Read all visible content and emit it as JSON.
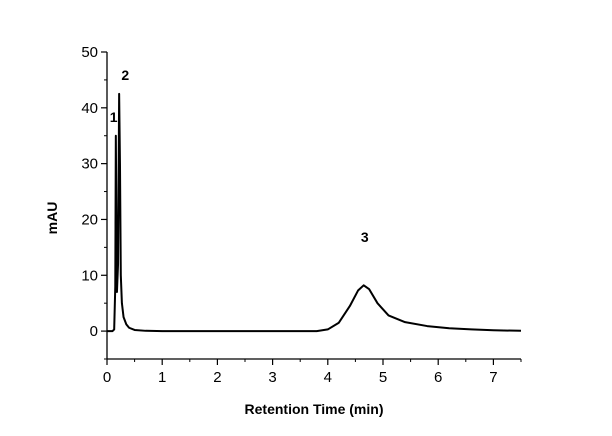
{
  "chart_data": {
    "type": "line",
    "title": "",
    "xlabel": "Retention Time (min)",
    "ylabel": "mAU",
    "xlim": [
      0,
      7.5
    ],
    "ylim": [
      -5,
      50
    ],
    "x_ticks": [
      "0",
      "1",
      "2",
      "3",
      "4",
      "5",
      "6",
      "7"
    ],
    "y_ticks": [
      "0",
      "10",
      "20",
      "30",
      "40",
      "50"
    ],
    "grid": false,
    "series": [
      {
        "name": "",
        "color": "#000000",
        "points": [
          [
            0.0,
            0.0
          ],
          [
            0.1,
            0.0
          ],
          [
            0.13,
            0.3
          ],
          [
            0.15,
            8.0
          ],
          [
            0.16,
            35.0
          ],
          [
            0.17,
            20.0
          ],
          [
            0.18,
            7.0
          ],
          [
            0.2,
            12.0
          ],
          [
            0.22,
            42.5
          ],
          [
            0.235,
            30.0
          ],
          [
            0.25,
            10.0
          ],
          [
            0.27,
            5.0
          ],
          [
            0.3,
            2.5
          ],
          [
            0.35,
            1.2
          ],
          [
            0.4,
            0.6
          ],
          [
            0.5,
            0.2
          ],
          [
            0.7,
            0.05
          ],
          [
            1.0,
            0.0
          ],
          [
            2.0,
            0.0
          ],
          [
            3.0,
            0.0
          ],
          [
            3.8,
            0.0
          ],
          [
            4.0,
            0.3
          ],
          [
            4.2,
            1.5
          ],
          [
            4.4,
            4.5
          ],
          [
            4.55,
            7.3
          ],
          [
            4.65,
            8.2
          ],
          [
            4.75,
            7.5
          ],
          [
            4.9,
            5.0
          ],
          [
            5.1,
            2.8
          ],
          [
            5.4,
            1.6
          ],
          [
            5.8,
            0.9
          ],
          [
            6.2,
            0.5
          ],
          [
            6.6,
            0.3
          ],
          [
            7.0,
            0.15
          ],
          [
            7.5,
            0.05
          ]
        ]
      }
    ],
    "annotations": [
      {
        "text": "1",
        "x": 0.12,
        "y": 37.5
      },
      {
        "text": "2",
        "x": 0.33,
        "y": 45.0
      },
      {
        "text": "3",
        "x": 4.67,
        "y": 16.0
      }
    ]
  }
}
